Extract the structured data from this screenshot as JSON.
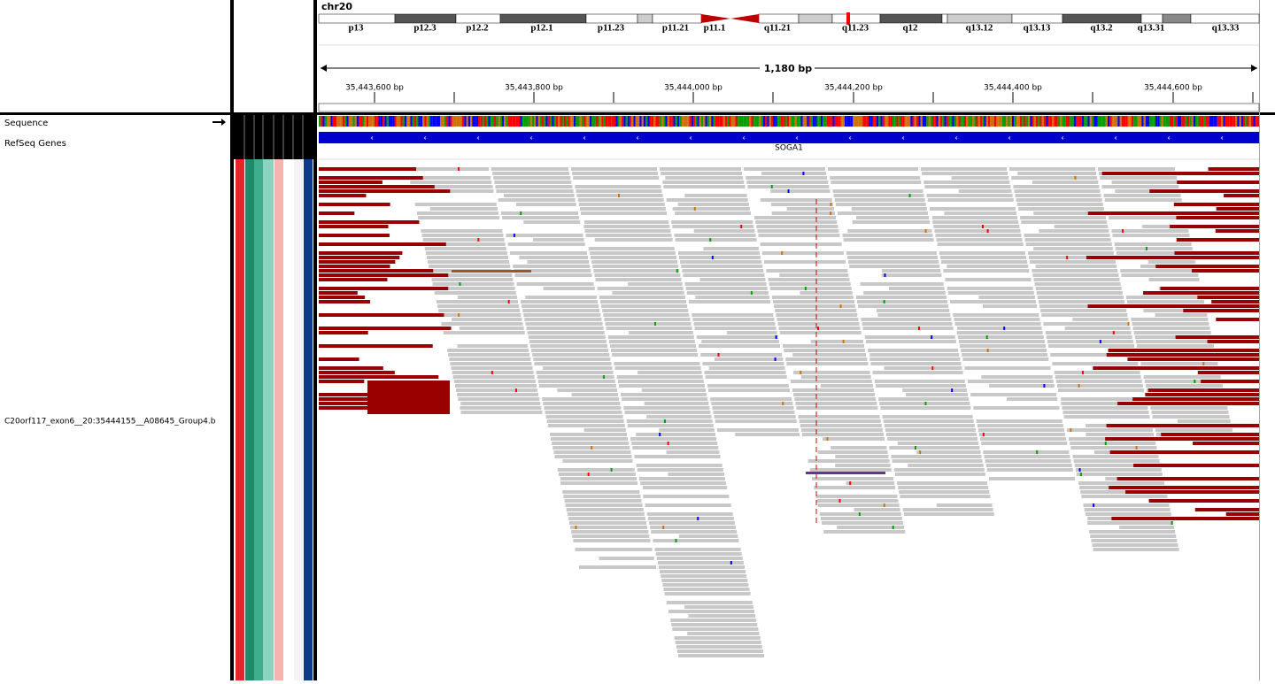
{
  "chromosome": "chr20",
  "cytobands": [
    "p13",
    "p12.3",
    "p12.2",
    "p12.1",
    "p11.23",
    "p11.21",
    "p11.1",
    "q11.21",
    "q11.23",
    "q12",
    "q13.12",
    "q13.13",
    "q13.2",
    "q13.31",
    "q13.33"
  ],
  "ruler": {
    "span": "1,180 bp",
    "ticks": [
      "35,443,600 bp",
      "35,443,800 bp",
      "35,444,000 bp",
      "35,444,200 bp",
      "35,444,400 bp",
      "35,444,600 bp"
    ]
  },
  "tracks": {
    "sequence": "Sequence",
    "genes": "RefSeq Genes",
    "gene_name": "SOGA1",
    "alignment": "C20orf117_exon6__20:35444155__A08645_Group4.b"
  }
}
